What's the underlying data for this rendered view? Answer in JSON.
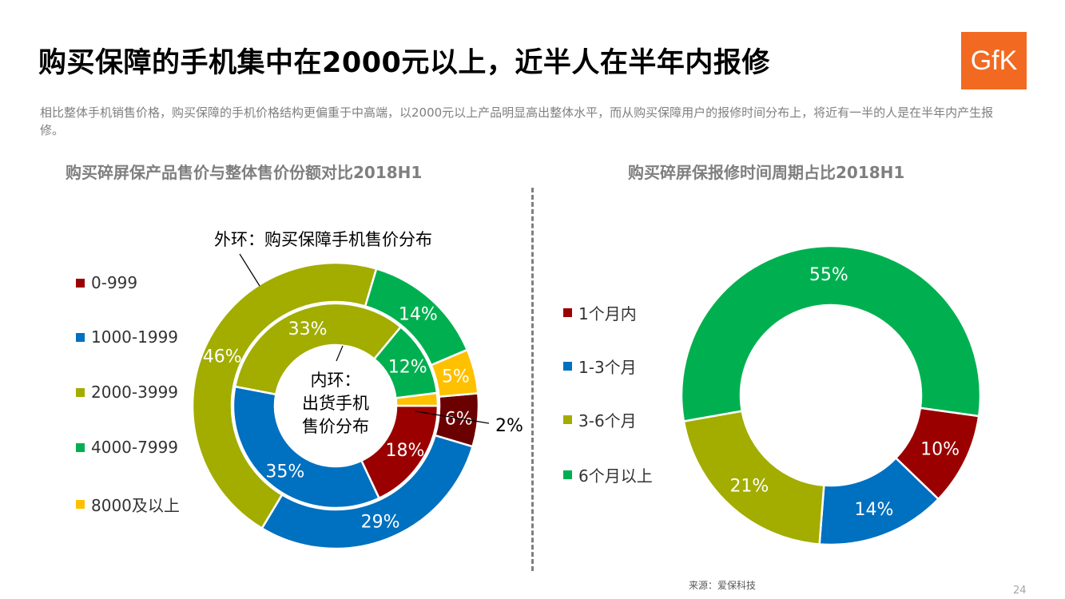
{
  "title": "购买保障的手机集中在2000元以上，近半人在半年内报修",
  "logo_text": "GfK",
  "subtitle": "相比整体手机销售价格，购买保障的手机价格结构更偏重于中高端，以2000元以上产品明显高出整体水平，而从购买保障用户的报修时间分布上，将近有一半的人是在半年内产生报修。",
  "footer": {
    "source": "来源：爱保科技",
    "page": "24"
  },
  "colors": {
    "0-999_inner": "#9A0000",
    "0-999_outer": "#6B0000",
    "1000-1999": "#0070C0",
    "2000-3999": "#A2AD00",
    "4000-7999": "#00B050",
    "8000+": "#FFC000"
  },
  "chart_data": [
    {
      "type": "donut",
      "title": "购买碎屏保产品售价与整体售价份额对比2018H1",
      "categories": [
        "0-999",
        "1000-1999",
        "2000-3999",
        "4000-7999",
        "8000及以上"
      ],
      "legend_colors": [
        "#9A0000",
        "#0070C0",
        "#A2AD00",
        "#00B050",
        "#FFC000"
      ],
      "annotations": {
        "outer": "外环：购买保障手机售价分布",
        "inner_line1": "内环：",
        "inner_line2": "出货手机",
        "inner_line3": "售价分布"
      },
      "series": [
        {
          "ring": "outer",
          "values": [
            6,
            29,
            46,
            14,
            5
          ],
          "labels": [
            "6%",
            "29%",
            "46%",
            "14%",
            "5%"
          ],
          "colors": [
            "#6B0000",
            "#0070C0",
            "#A2AD00",
            "#00B050",
            "#FFC000"
          ]
        },
        {
          "ring": "inner",
          "values": [
            18,
            35,
            33,
            12,
            2
          ],
          "labels": [
            "18%",
            "35%",
            "33%",
            "12%",
            "2%"
          ],
          "colors": [
            "#9A0000",
            "#0070C0",
            "#A2AD00",
            "#00B050",
            "#FFC000"
          ]
        }
      ],
      "legend_position": "left"
    },
    {
      "type": "donut",
      "title": "购买碎屏保报修时间周期占比2018H1",
      "categories": [
        "1个月内",
        "1-3个月",
        "3-6个月",
        "6个月以上"
      ],
      "values": [
        10,
        14,
        21,
        55
      ],
      "labels": [
        "10%",
        "14%",
        "21%",
        "55%"
      ],
      "colors": [
        "#9A0000",
        "#0070C0",
        "#A2AD00",
        "#00B050"
      ],
      "legend_position": "left"
    }
  ]
}
